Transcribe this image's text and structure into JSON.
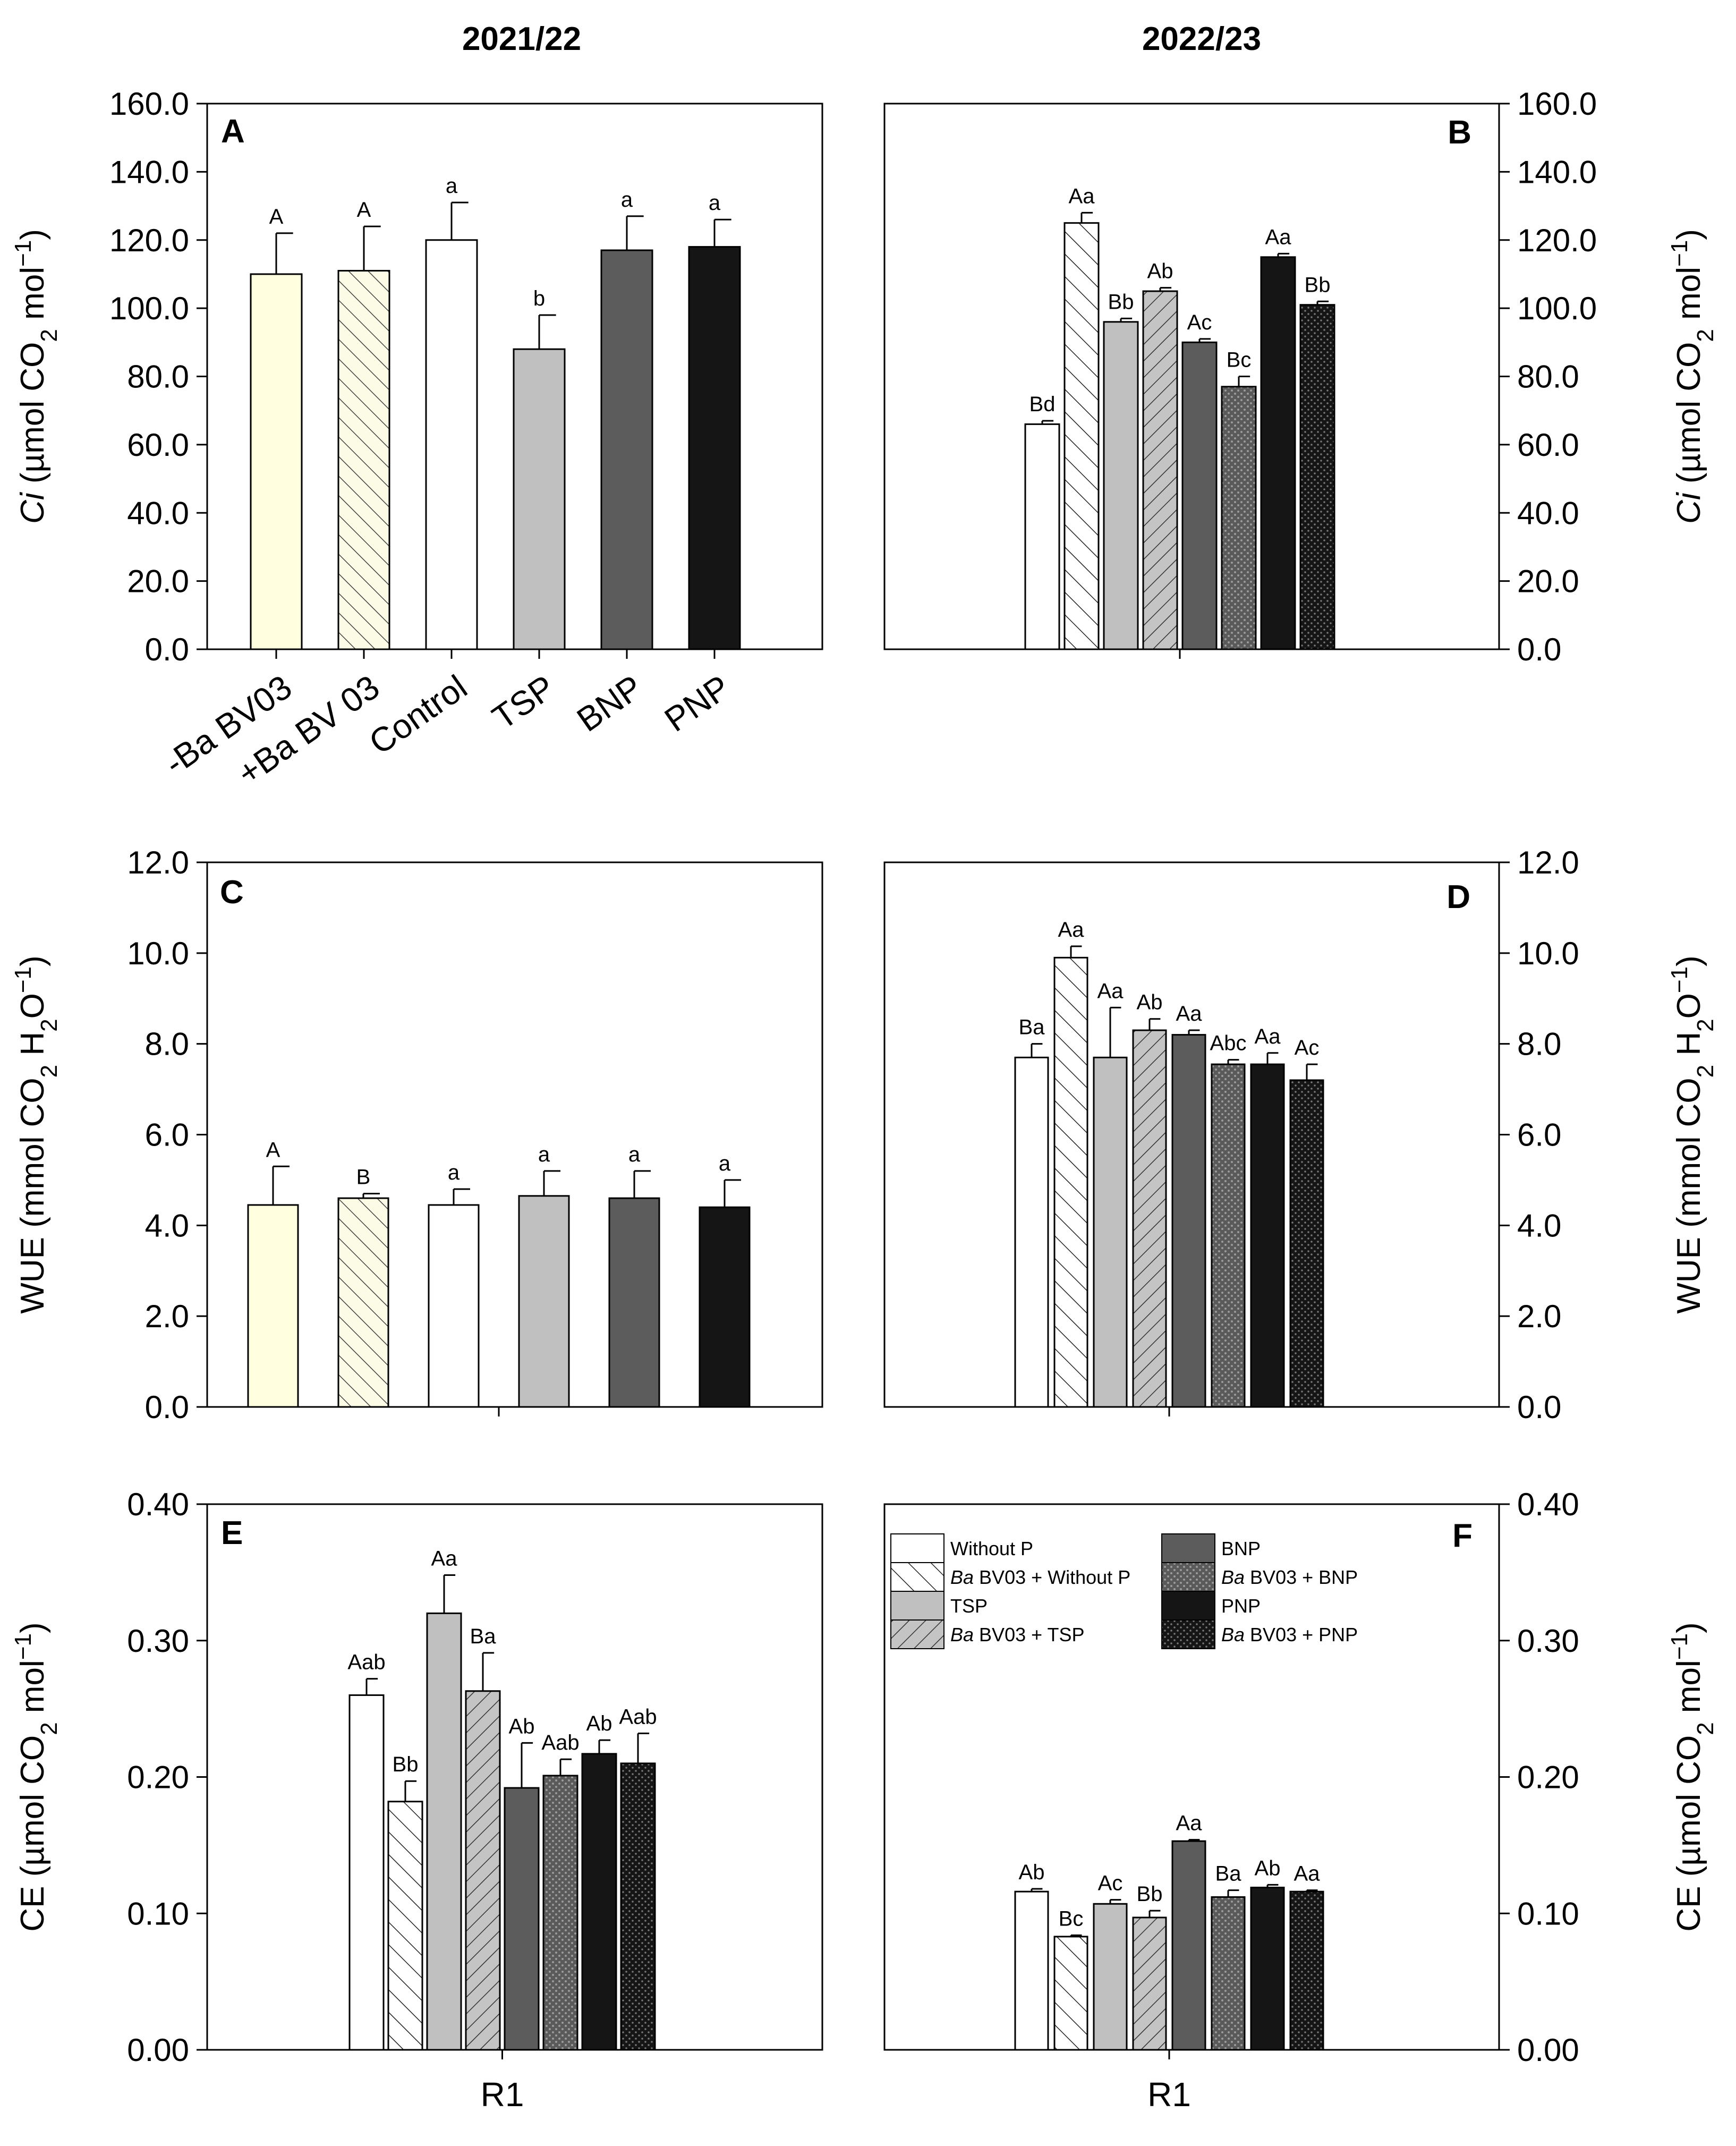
{
  "column_titles": [
    "2021/22",
    "2022/23"
  ],
  "legend": {
    "entries": [
      {
        "prefix": "",
        "label": "Without P",
        "key": "without_p"
      },
      {
        "prefix": "Ba",
        "label": " BV03 + Without P",
        "key": "ba_without_p"
      },
      {
        "prefix": "",
        "label": "TSP",
        "key": "tsp"
      },
      {
        "prefix": "Ba",
        "label": " BV03 + TSP",
        "key": "ba_tsp"
      },
      {
        "prefix": "",
        "label": "BNP",
        "key": "bnp"
      },
      {
        "prefix": "Ba",
        "label": " BV03 + BNP",
        "key": "ba_bnp"
      },
      {
        "prefix": "",
        "label": "PNP",
        "key": "pnp"
      },
      {
        "prefix": "Ba",
        "label": " BV03 + PNP",
        "key": "ba_pnp"
      }
    ]
  },
  "chart_data": [
    {
      "panel": "A",
      "type": "bar",
      "ylabel_italic": "Ci",
      "ylabel_text": " (µmol CO",
      "ylabel_sub": "2",
      "ylabel_tail": " mol",
      "ylabel_sup": "−1",
      "ylabel_close": ")",
      "ylim": [
        0,
        160
      ],
      "yticks": [
        "0.0",
        "20.0",
        "40.0",
        "60.0",
        "80.0",
        "100.0",
        "120.0",
        "140.0",
        "160.0"
      ],
      "categories": [
        "-Ba BV03",
        "+Ba BV 03",
        "Control",
        "TSP",
        "BNP",
        "PNP"
      ],
      "values": [
        110,
        111,
        120,
        88,
        117,
        118
      ],
      "errors": [
        12,
        13,
        11,
        10,
        10,
        8
      ],
      "labels": [
        "A",
        "A",
        "a",
        "b",
        "a",
        "a"
      ],
      "fills": [
        "cream",
        "cream-hatch",
        "white",
        "lightgray",
        "darkgray",
        "black"
      ]
    },
    {
      "panel": "B",
      "type": "bar",
      "ylabel_italic": "Ci",
      "ylabel_text": " (µmol CO",
      "ylabel_sub": "2",
      "ylabel_tail": " mol",
      "ylabel_sup": "−1",
      "ylabel_close": ")",
      "ylim": [
        0,
        160
      ],
      "yticks": [
        "0.0",
        "20.0",
        "40.0",
        "60.0",
        "80.0",
        "100.0",
        "120.0",
        "140.0",
        "160.0"
      ],
      "values": [
        66,
        125,
        96,
        105,
        90,
        77,
        115,
        101
      ],
      "errors": [
        1,
        3,
        1,
        1,
        1,
        3,
        1,
        1
      ],
      "labels": [
        "Bd",
        "Aa",
        "Bb",
        "Ab",
        "Ac",
        "Bc",
        "Aa",
        "Bb"
      ],
      "fills": [
        "white",
        "hatch",
        "lightgray",
        "gray-hatch",
        "darkgray",
        "darkdots",
        "black",
        "blackdots"
      ]
    },
    {
      "panel": "C",
      "type": "bar",
      "ylabel_text": "WUE (mmol CO",
      "ylabel_sub": "2",
      "ylabel_tail": " H",
      "ylabel_sub2": "2",
      "ylabel_tail2": "O",
      "ylabel_sup": "−1",
      "ylabel_close": ")",
      "ylim": [
        0,
        12
      ],
      "yticks": [
        "0.0",
        "2.0",
        "4.0",
        "6.0",
        "8.0",
        "10.0",
        "12.0"
      ],
      "values": [
        4.45,
        4.6,
        4.45,
        4.65,
        4.6,
        4.4
      ],
      "errors": [
        0.85,
        0.1,
        0.35,
        0.55,
        0.6,
        0.6
      ],
      "labels": [
        "A",
        "B",
        "a",
        "a",
        "a",
        "a"
      ],
      "fills": [
        "cream",
        "cream-hatch",
        "white",
        "lightgray",
        "darkgray",
        "black"
      ]
    },
    {
      "panel": "D",
      "type": "bar",
      "ylabel_text": "WUE (mmol CO",
      "ylabel_sub": "2",
      "ylabel_tail": " H",
      "ylabel_sub2": "2",
      "ylabel_tail2": "O",
      "ylabel_sup": "−1",
      "ylabel_close": ")",
      "ylim": [
        0,
        12
      ],
      "yticks": [
        "0.0",
        "2.0",
        "4.0",
        "6.0",
        "8.0",
        "10.0",
        "12.0"
      ],
      "values": [
        7.7,
        9.9,
        7.7,
        8.3,
        8.2,
        7.55,
        7.55,
        7.2
      ],
      "errors": [
        0.3,
        0.25,
        1.1,
        0.25,
        0.1,
        0.1,
        0.25,
        0.35
      ],
      "labels": [
        "Ba",
        "Aa",
        "Aa",
        "Ab",
        "Aa",
        "Abc",
        "Aa",
        "Ac"
      ],
      "fills": [
        "white",
        "hatch",
        "lightgray",
        "gray-hatch",
        "darkgray",
        "darkdots",
        "black",
        "blackdots"
      ]
    },
    {
      "panel": "E",
      "type": "bar",
      "ylabel_text": "CE (µmol CO",
      "ylabel_sub": "2",
      "ylabel_tail": " mol",
      "ylabel_sup": "−1",
      "ylabel_close": ")",
      "ylim": [
        0,
        0.4
      ],
      "yticks": [
        "0.00",
        "0.10",
        "0.20",
        "0.30",
        "0.40"
      ],
      "xlabel": "R1",
      "values": [
        0.26,
        0.182,
        0.32,
        0.263,
        0.192,
        0.201,
        0.217,
        0.21
      ],
      "errors": [
        0.012,
        0.015,
        0.028,
        0.028,
        0.033,
        0.012,
        0.01,
        0.022
      ],
      "labels": [
        "Aab",
        "Bb",
        "Aa",
        "Ba",
        "Ab",
        "Aab",
        "Ab",
        "Aab"
      ],
      "fills": [
        "white",
        "hatch",
        "lightgray",
        "gray-hatch",
        "darkgray",
        "darkdots",
        "black",
        "blackdots"
      ]
    },
    {
      "panel": "F",
      "type": "bar",
      "ylabel_text": "CE (µmol CO",
      "ylabel_sub": "2",
      "ylabel_tail": " mol",
      "ylabel_sup": "−1",
      "ylabel_close": ")",
      "ylim": [
        0,
        0.4
      ],
      "yticks": [
        "0.00",
        "0.10",
        "0.20",
        "0.30",
        "0.40"
      ],
      "xlabel": "R1",
      "values": [
        0.116,
        0.083,
        0.107,
        0.097,
        0.153,
        0.112,
        0.119,
        0.116
      ],
      "errors": [
        0.002,
        0.001,
        0.003,
        0.005,
        0.001,
        0.005,
        0.002,
        0.001
      ],
      "labels": [
        "Ab",
        "Bc",
        "Ac",
        "Bb",
        "Aa",
        "Ba",
        "Ab",
        "Aa"
      ],
      "fills": [
        "white",
        "hatch",
        "lightgray",
        "gray-hatch",
        "darkgray",
        "darkdots",
        "black",
        "blackdots"
      ]
    }
  ]
}
